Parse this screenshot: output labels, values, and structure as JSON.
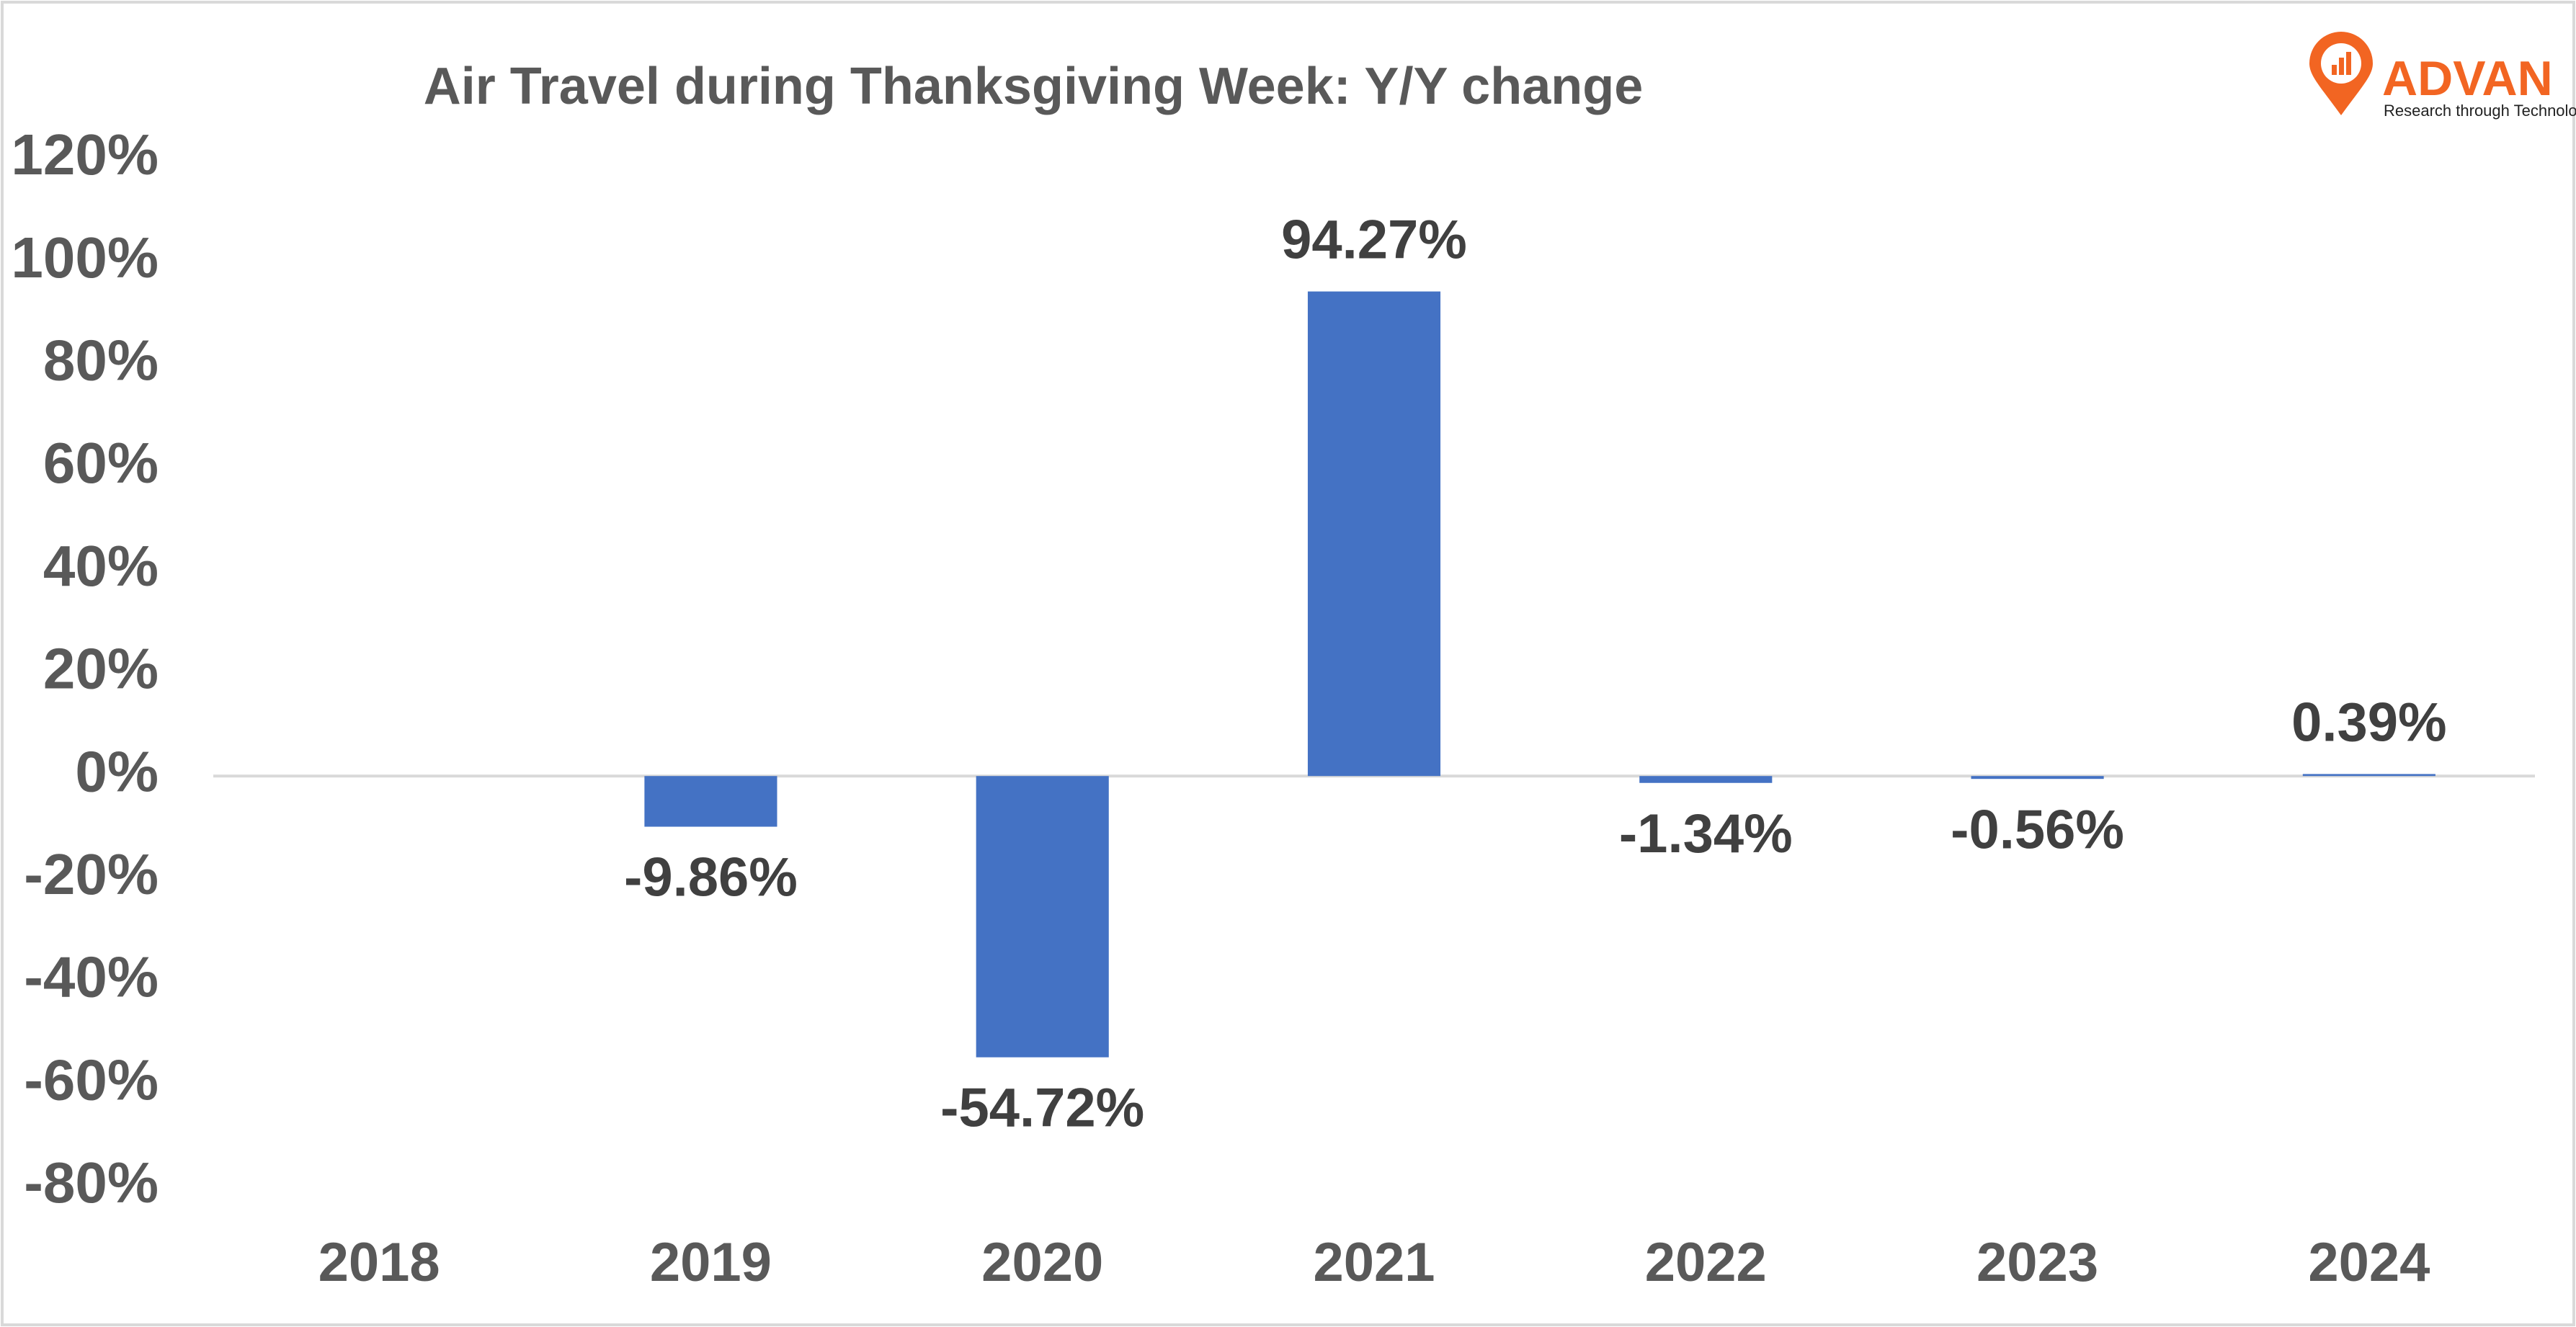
{
  "chart_data": {
    "type": "bar",
    "title": "Air Travel during Thanksgiving Week: Y/Y change",
    "categories": [
      "2018",
      "2019",
      "2020",
      "2021",
      "2022",
      "2023",
      "2024"
    ],
    "values": [
      null,
      -9.86,
      -54.72,
      94.27,
      -1.34,
      -0.56,
      0.39
    ],
    "value_labels": [
      null,
      "-9.86%",
      "-54.72%",
      "94.27%",
      "-1.34%",
      "-0.56%",
      "0.39%"
    ],
    "color": "#4472c4",
    "ylim": [
      -80,
      120
    ],
    "yticks": [
      {
        "value": -80,
        "label": "-80%"
      },
      {
        "value": -60,
        "label": "-60%"
      },
      {
        "value": -40,
        "label": "-40%"
      },
      {
        "value": -20,
        "label": "-20%"
      },
      {
        "value": 0,
        "label": "0%"
      },
      {
        "value": 20,
        "label": "20%"
      },
      {
        "value": 40,
        "label": "40%"
      },
      {
        "value": 60,
        "label": "60%"
      },
      {
        "value": 80,
        "label": "80%"
      },
      {
        "value": 100,
        "label": "100%"
      },
      {
        "value": 120,
        "label": "120%"
      }
    ],
    "grid": false
  },
  "logo": {
    "name": "ADVAN",
    "tagline": "Research through Technology"
  }
}
